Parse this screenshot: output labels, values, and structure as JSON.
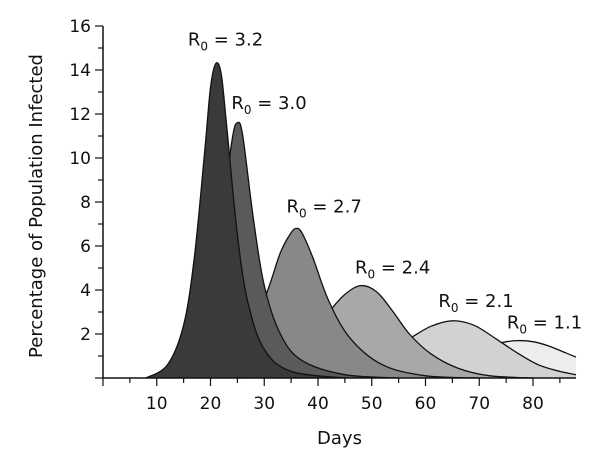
{
  "chart_data": {
    "type": "area",
    "title": "",
    "xlabel": "Days",
    "ylabel": "Percentage of Population Infected",
    "xlim": [
      0,
      88
    ],
    "ylim": [
      0,
      16
    ],
    "xticks": [
      10,
      20,
      30,
      40,
      50,
      60,
      70,
      80
    ],
    "yticks": [
      2,
      4,
      6,
      8,
      10,
      12,
      14,
      16
    ],
    "grid": false,
    "legend": "none",
    "series": [
      {
        "label": "R₀ = 3.2",
        "label_parts": [
          "R",
          "0",
          " = 3.2"
        ],
        "color": "#3a3a3a",
        "peak_x": 21,
        "peak_y": 14.3,
        "x": [
          8,
          12,
          15,
          17,
          19,
          20,
          21,
          22,
          23,
          25,
          27,
          30,
          35,
          45
        ],
        "y": [
          0,
          0.6,
          2.4,
          5.5,
          10.5,
          13.2,
          14.3,
          13.8,
          11.5,
          6.5,
          3.4,
          1.3,
          0.3,
          0
        ]
      },
      {
        "label": "R₀ = 3.0",
        "label_parts": [
          "R",
          "0",
          " = 3.0"
        ],
        "color": "#5a5a5a",
        "peak_x": 25,
        "peak_y": 11.6,
        "x": [
          10,
          15,
          18,
          20,
          22,
          24,
          25,
          26,
          28,
          30,
          33,
          37,
          45,
          55
        ],
        "y": [
          0,
          0.6,
          1.8,
          3.5,
          7.0,
          10.8,
          11.6,
          11.0,
          7.2,
          4.2,
          2.0,
          0.8,
          0.15,
          0
        ]
      },
      {
        "label": "R₀ = 2.7",
        "label_parts": [
          "R",
          "0",
          " = 2.7"
        ],
        "color": "#888888",
        "peak_x": 36,
        "peak_y": 6.8,
        "x": [
          12,
          20,
          25,
          30,
          33,
          35,
          36,
          37,
          39,
          42,
          46,
          52,
          60,
          70
        ],
        "y": [
          0,
          0.4,
          1.3,
          3.6,
          5.7,
          6.6,
          6.8,
          6.6,
          5.5,
          3.5,
          1.8,
          0.6,
          0.1,
          0
        ]
      },
      {
        "label": "R₀ = 2.4",
        "label_parts": [
          "R",
          "0",
          " = 2.4"
        ],
        "color": "#a8a8a8",
        "peak_x": 48,
        "peak_y": 4.2,
        "x": [
          15,
          25,
          32,
          38,
          42,
          45,
          48,
          51,
          54,
          57,
          61,
          66,
          72,
          80
        ],
        "y": [
          0,
          0.2,
          0.8,
          1.9,
          3.0,
          3.8,
          4.2,
          3.9,
          3.0,
          2.0,
          1.1,
          0.45,
          0.1,
          0
        ]
      },
      {
        "label": "R₀ = 2.1",
        "label_parts": [
          "R",
          "0",
          " = 2.1"
        ],
        "color": "#d2d2d2",
        "peak_x": 65,
        "peak_y": 2.6,
        "x": [
          20,
          35,
          45,
          52,
          57,
          61,
          65,
          69,
          73,
          77,
          81,
          85,
          88
        ],
        "y": [
          0,
          0.15,
          0.6,
          1.2,
          1.8,
          2.35,
          2.6,
          2.4,
          1.8,
          1.15,
          0.6,
          0.3,
          0.15
        ]
      },
      {
        "label": "R₀ = 1.1",
        "label_parts": [
          "R",
          "0",
          " = 1.1"
        ],
        "color": "#ededed",
        "peak_x": 77,
        "peak_y": 1.7,
        "x": [
          25,
          40,
          50,
          57,
          62,
          66,
          70,
          74,
          77,
          80,
          83,
          86,
          88
        ],
        "y": [
          0,
          0.1,
          0.3,
          0.55,
          0.8,
          1.05,
          1.35,
          1.6,
          1.7,
          1.65,
          1.45,
          1.15,
          0.95
        ]
      }
    ]
  }
}
